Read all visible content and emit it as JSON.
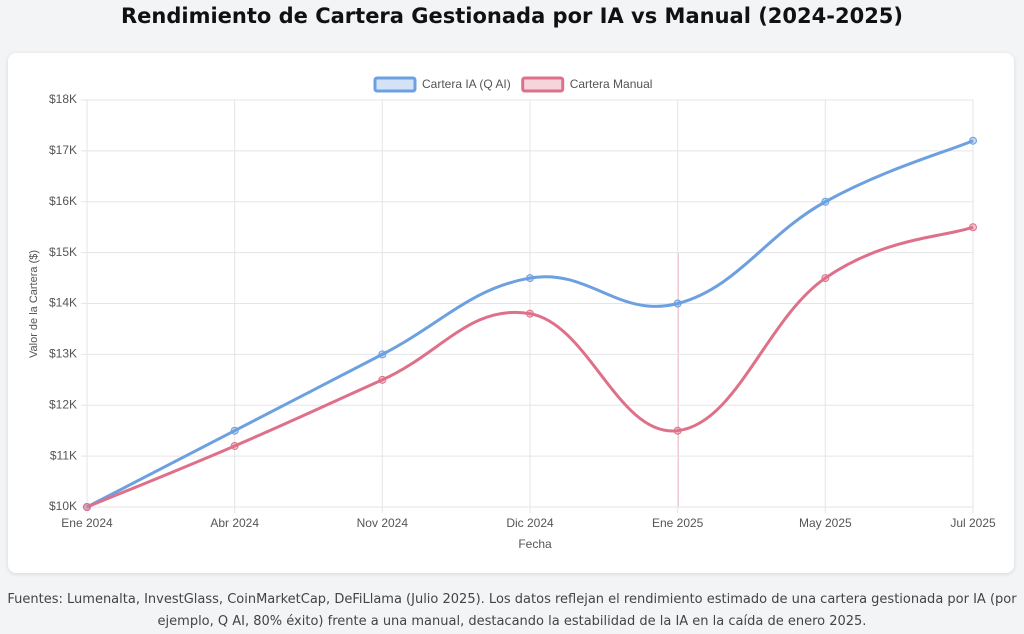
{
  "chart_data": {
    "type": "line",
    "title": "Rendimiento de Cartera Gestionada por IA vs Manual (2024-2025)",
    "x_label": "Fecha",
    "y_label": "Valor de la Cartera ($)",
    "categories": [
      "Ene 2024",
      "Abr 2024",
      "Nov 2024",
      "Dic 2024",
      "Ene 2025",
      "May 2025",
      "Jul 2025"
    ],
    "series": [
      {
        "name": "Cartera IA (Q AI)",
        "color": "#6ca0e0",
        "values": [
          10000,
          11500,
          13000,
          14500,
          14000,
          16000,
          17200
        ]
      },
      {
        "name": "Cartera Manual",
        "color": "#de7189",
        "values": [
          10000,
          11200,
          12500,
          13800,
          11500,
          14500,
          15500
        ]
      }
    ],
    "ylim": [
      10000,
      18000
    ],
    "yticks": [
      {
        "value": 10000,
        "label": "$10K"
      },
      {
        "value": 11000,
        "label": "$11K"
      },
      {
        "value": 12000,
        "label": "$12K"
      },
      {
        "value": 13000,
        "label": "$13K"
      },
      {
        "value": 14000,
        "label": "$14K"
      },
      {
        "value": 15000,
        "label": "$15K"
      },
      {
        "value": 16000,
        "label": "$16K"
      },
      {
        "value": 17000,
        "label": "$17K"
      },
      {
        "value": 18000,
        "label": "$18K"
      }
    ],
    "grid": true,
    "legend": "top"
  },
  "footer": "Fuentes: Lumenalta, InvestGlass, CoinMarketCap, DeFiLlama (Julio 2025). Los datos reflejan el rendimiento estimado de una cartera gestionada por IA (por ejemplo, Q AI, 80% éxito) frente a una manual, destacando la estabilidad de la IA en la caída de enero 2025."
}
